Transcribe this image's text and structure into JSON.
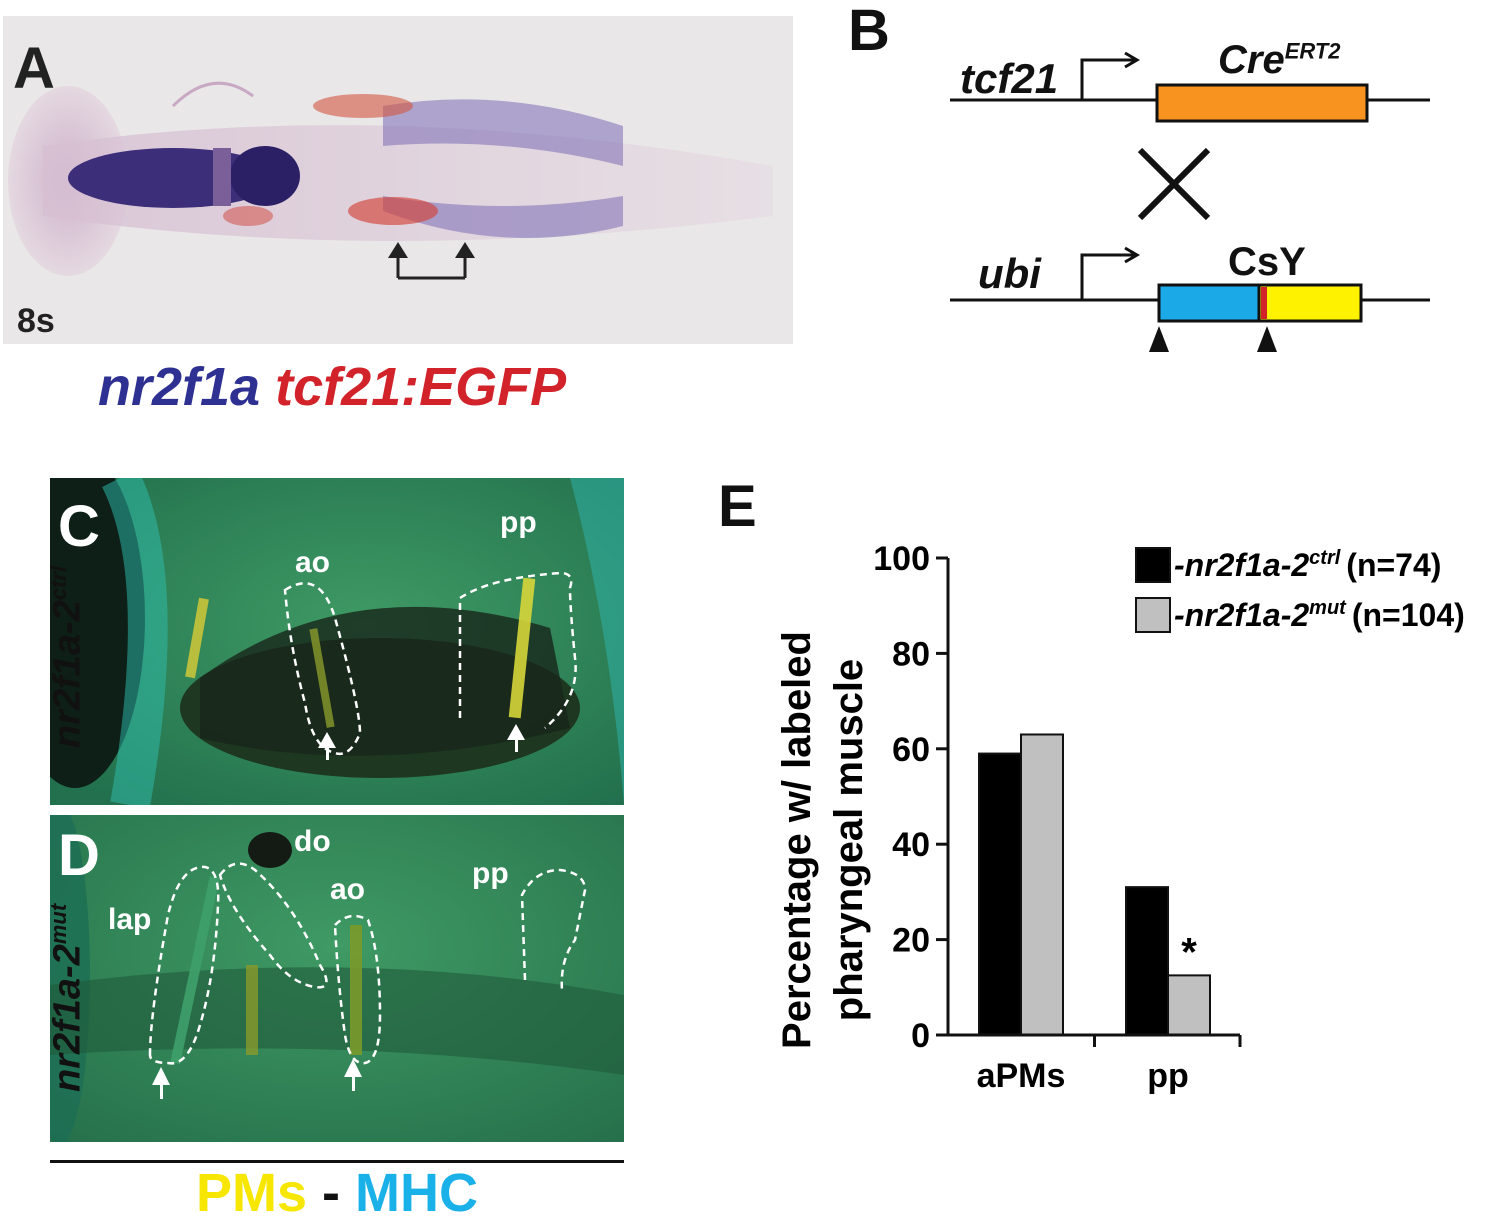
{
  "panelA": {
    "label": "A",
    "stage": "8s",
    "caption_blue": "nr2f1a",
    "caption_red": "tcf21:EGFP"
  },
  "panelB": {
    "label": "B",
    "gene1": "tcf21",
    "cre": "Cre",
    "cre_sup": "ERT2",
    "gene2": "ubi",
    "reporter": "CsY"
  },
  "panelC": {
    "label": "C",
    "side_gene": "nr2f1a-2",
    "side_sup": "ctrl",
    "labels": [
      "ao",
      "pp"
    ]
  },
  "panelD": {
    "label": "D",
    "side_gene": "nr2f1a-2",
    "side_sup": "mut",
    "labels": [
      "do",
      "lap",
      "ao",
      "pp"
    ]
  },
  "bottom_caption": {
    "pms": "PMs",
    "dash": "-",
    "mhc": "MHC"
  },
  "colors": {
    "orange": "#f7931e",
    "blue": "#1ba9e8",
    "yellow": "#fff200",
    "nrBlue": "#2e3192",
    "tcfRed": "#d2232a",
    "pms": "#f7e600",
    "mhc": "#1ab0e8"
  },
  "chart_data": {
    "panel_label": "E",
    "type": "bar",
    "ylabel_line1": "Percentage w/ labeled",
    "ylabel_line2": "pharyngeal muscle",
    "ylim": [
      0,
      100
    ],
    "yticks": [
      0,
      20,
      40,
      60,
      80,
      100
    ],
    "categories": [
      "aPMs",
      "pp"
    ],
    "series": [
      {
        "name": "-nr2f1a-2",
        "sup": "ctrl",
        "n_label": "(n=74)",
        "color": "#000000",
        "values": [
          59,
          31
        ]
      },
      {
        "name": "-nr2f1a-2",
        "sup": "mut",
        "n_label": "(n=104)",
        "color": "#c0c0c0",
        "values": [
          63,
          12.5
        ]
      }
    ],
    "annotation": "*",
    "legend_position": "top-right"
  }
}
